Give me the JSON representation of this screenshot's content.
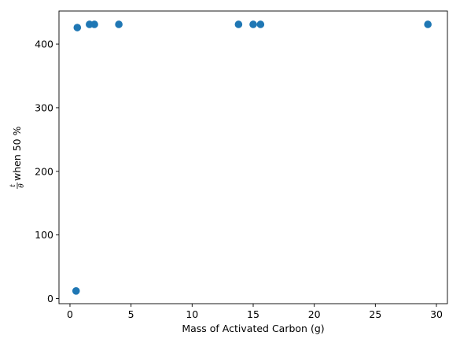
{
  "chart_data": {
    "type": "scatter",
    "title": "",
    "xlabel": "Mass of Activated Carbon (g)",
    "ylabel": {
      "numerator": "t",
      "denominator": "θ",
      "suffix": " when 50 %"
    },
    "xlim": [
      -0.9,
      30.9
    ],
    "ylim": [
      -8,
      452
    ],
    "xticks": [
      0,
      5,
      10,
      15,
      20,
      25,
      30
    ],
    "yticks": [
      0,
      100,
      200,
      300,
      400
    ],
    "grid": false,
    "marker_color": "#1f77b4",
    "points": [
      {
        "x": 0.5,
        "y": 12
      },
      {
        "x": 0.6,
        "y": 426
      },
      {
        "x": 1.6,
        "y": 431
      },
      {
        "x": 2.0,
        "y": 431
      },
      {
        "x": 4.0,
        "y": 431
      },
      {
        "x": 13.8,
        "y": 431
      },
      {
        "x": 15.0,
        "y": 431
      },
      {
        "x": 15.6,
        "y": 431
      },
      {
        "x": 29.3,
        "y": 431
      }
    ]
  }
}
